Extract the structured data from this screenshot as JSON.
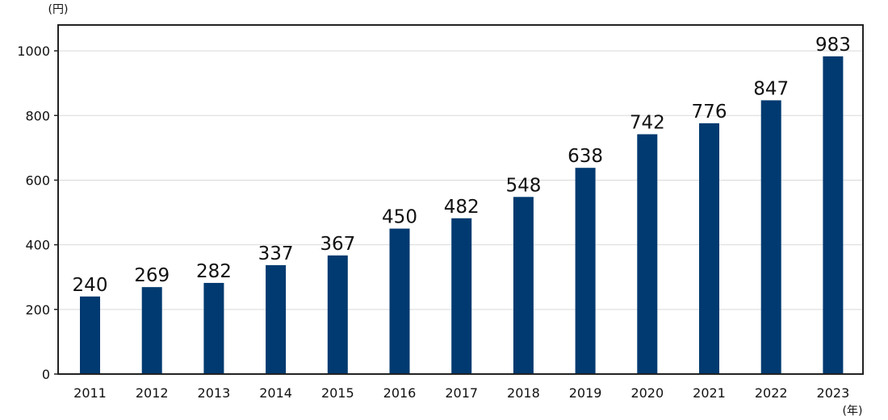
{
  "chart_data": {
    "type": "bar",
    "categories": [
      "2011",
      "2012",
      "2013",
      "2014",
      "2015",
      "2016",
      "2017",
      "2018",
      "2019",
      "2020",
      "2021",
      "2022",
      "2023"
    ],
    "values": [
      240,
      269,
      282,
      337,
      367,
      450,
      482,
      548,
      638,
      742,
      776,
      847,
      983
    ],
    "title": "",
    "xlabel": "(年)",
    "ylabel": "(円)",
    "ylim": [
      0,
      1080
    ],
    "yticks": [
      0,
      200,
      400,
      600,
      800,
      1000
    ],
    "grid": true,
    "colors": {
      "bar": "#003a70",
      "grid": "#d9d9d9",
      "frame": "#222222"
    }
  }
}
